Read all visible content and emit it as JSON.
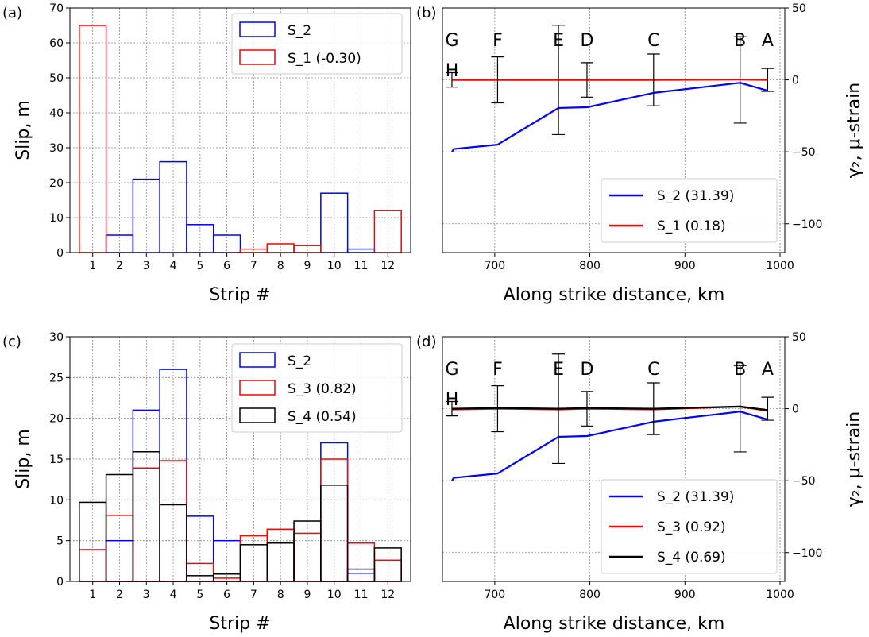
{
  "panels": {
    "a": {
      "label": "(a)",
      "type": "bar",
      "xlabel": "Strip #",
      "ylabel": "Slip, m",
      "categories": [
        "1",
        "2",
        "3",
        "4",
        "5",
        "6",
        "7",
        "8",
        "9",
        "10",
        "11",
        "12"
      ],
      "ylim": [
        0,
        70
      ],
      "yticks": [
        "0",
        "10",
        "20",
        "30",
        "40",
        "50",
        "60",
        "70"
      ],
      "legend": [
        "S_2",
        "S_1 (-0.30)"
      ],
      "series": [
        {
          "name": "S_2",
          "color": "#0000ff",
          "values": [
            0,
            5,
            21,
            26,
            8,
            5,
            0,
            0,
            0,
            17,
            1,
            0
          ]
        },
        {
          "name": "S_1 (-0.30)",
          "color": "#ff0000",
          "values": [
            65,
            0,
            0,
            0,
            0,
            0,
            1,
            2.5,
            2,
            0,
            0,
            12
          ]
        }
      ]
    },
    "b": {
      "label": "(b)",
      "type": "line",
      "xlabel": "Along strike distance, km",
      "ylabel": "γ₂, μ-strain",
      "xlim": [
        645,
        1005
      ],
      "ylim": [
        -120,
        50
      ],
      "xticks": [
        "700",
        "800",
        "900",
        "1000"
      ],
      "yticks": [
        "50",
        "0",
        "−50",
        "−100"
      ],
      "sites": [
        "G",
        "H",
        "F",
        "E",
        "D",
        "C",
        "B",
        "A"
      ],
      "legend": [
        "S_2 (31.39)",
        "S_1 (0.18)"
      ],
      "errorbars": {
        "x": [
          655,
          703,
          767,
          797,
          867,
          958,
          987
        ],
        "half": [
          5,
          16,
          38,
          12,
          18,
          30,
          8
        ]
      },
      "series": [
        {
          "name": "S_2 (31.39)",
          "color": "#0000ff",
          "x": [
            655,
            657,
            703,
            767,
            797,
            867,
            958,
            987
          ],
          "y": [
            -50,
            -48,
            -45,
            -19.5,
            -19,
            -9,
            -2,
            -7.5
          ]
        },
        {
          "name": "S_1 (0.18)",
          "color": "#ff0000",
          "x": [
            655,
            703,
            767,
            797,
            867,
            958,
            987
          ],
          "y": [
            0,
            0,
            0,
            0,
            0,
            0.3,
            0
          ]
        }
      ]
    },
    "c": {
      "label": "(c)",
      "type": "bar",
      "xlabel": "Strip #",
      "ylabel": "Slip, m",
      "categories": [
        "1",
        "2",
        "3",
        "4",
        "5",
        "6",
        "7",
        "8",
        "9",
        "10",
        "11",
        "12"
      ],
      "ylim": [
        0,
        30
      ],
      "yticks": [
        "0",
        "5",
        "10",
        "15",
        "20",
        "25",
        "30"
      ],
      "legend": [
        "S_2",
        "S_3 (0.82)",
        "S_4 (0.54)"
      ],
      "series": [
        {
          "name": "S_2",
          "color": "#0000ff",
          "values": [
            0,
            5,
            21,
            26,
            8,
            5,
            0,
            0,
            0,
            17,
            1,
            0
          ]
        },
        {
          "name": "S_3 (0.82)",
          "color": "#ff0000",
          "values": [
            3.9,
            8.1,
            13.9,
            14.8,
            2.2,
            0.4,
            5.6,
            6.4,
            5.9,
            15,
            4.7,
            2.6
          ]
        },
        {
          "name": "S_4 (0.54)",
          "color": "#000000",
          "values": [
            9.7,
            13.1,
            15.9,
            9.4,
            0.7,
            0.9,
            4.5,
            4.7,
            7.4,
            11.8,
            1.5,
            4.1
          ]
        }
      ]
    },
    "d": {
      "label": "(d)",
      "type": "line",
      "xlabel": "Along strike distance, km",
      "ylabel": "γ₂, μ-strain",
      "xlim": [
        645,
        1005
      ],
      "ylim": [
        -120,
        50
      ],
      "xticks": [
        "700",
        "800",
        "900",
        "1000"
      ],
      "yticks": [
        "50",
        "0",
        "−50",
        "−100"
      ],
      "sites": [
        "G",
        "H",
        "F",
        "E",
        "D",
        "C",
        "B",
        "A"
      ],
      "legend": [
        "S_2 (31.39)",
        "S_3 (0.92)",
        "S_4 (0.69)"
      ],
      "errorbars": {
        "x": [
          655,
          703,
          767,
          797,
          867,
          958,
          987
        ],
        "half": [
          5,
          16,
          38,
          12,
          18,
          30,
          8
        ]
      },
      "series": [
        {
          "name": "S_2 (31.39)",
          "color": "#0000ff",
          "x": [
            655,
            657,
            703,
            767,
            797,
            867,
            958,
            987
          ],
          "y": [
            -50,
            -48,
            -45,
            -19.5,
            -19,
            -9,
            -2,
            -7.5
          ]
        },
        {
          "name": "S_3 (0.92)",
          "color": "#ff0000",
          "x": [
            655,
            703,
            767,
            797,
            867,
            958,
            987
          ],
          "y": [
            -0.5,
            0,
            -0.5,
            0,
            -0.5,
            1.5,
            -1.5
          ]
        },
        {
          "name": "S_4 (0.69)",
          "color": "#000000",
          "x": [
            655,
            703,
            767,
            797,
            867,
            958,
            987
          ],
          "y": [
            0,
            0.5,
            0,
            0.5,
            0,
            1.5,
            -1
          ]
        }
      ]
    }
  }
}
